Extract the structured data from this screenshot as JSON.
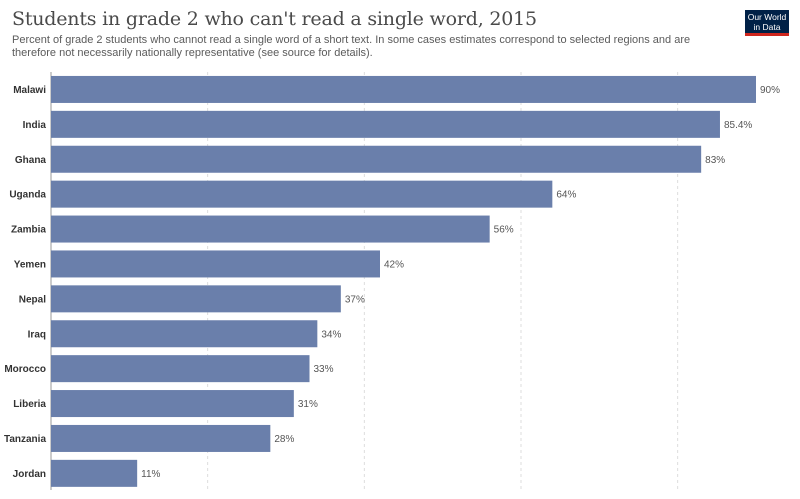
{
  "header": {
    "title": "Students in grade 2 who can't read a single word, 2015",
    "subtitle": "Percent of grade 2 students who cannot read a single word of a short text. In some cases estimates correspond to selected regions and are therefore not necessarily nationally representative (see source for details).",
    "logo_line1": "Our World",
    "logo_line2": "in Data"
  },
  "colors": {
    "bar": "#6a7fab",
    "grid": "#dddddd"
  },
  "chart_data": {
    "type": "bar",
    "orientation": "horizontal",
    "title": "Students in grade 2 who can't read a single word, 2015",
    "categories": [
      "Malawi",
      "India",
      "Ghana",
      "Uganda",
      "Zambia",
      "Yemen",
      "Nepal",
      "Iraq",
      "Morocco",
      "Liberia",
      "Tanzania",
      "Jordan"
    ],
    "values": [
      90,
      85.4,
      83,
      64,
      56,
      42,
      37,
      34,
      33,
      31,
      28,
      11
    ],
    "labels": [
      "90%",
      "85.4%",
      "83%",
      "64%",
      "56%",
      "42%",
      "37%",
      "34%",
      "33%",
      "31%",
      "28%",
      "11%"
    ],
    "xlim": [
      0,
      90
    ],
    "grid": true
  }
}
